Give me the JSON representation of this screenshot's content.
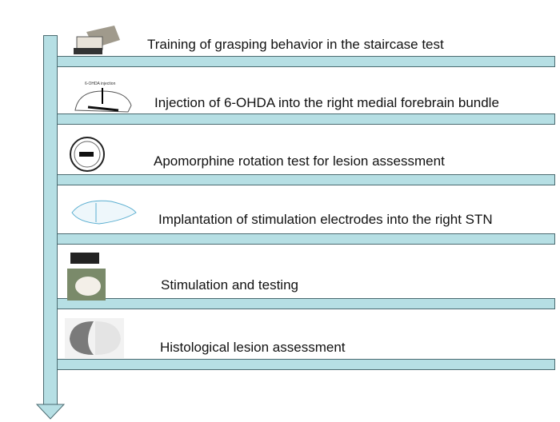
{
  "steps": [
    {
      "label": "Training of grasping behavior in the staircase test",
      "image": "staircase-apparatus-photo"
    },
    {
      "label": "Injection of 6-OHDA into the right medial forebrain bundle",
      "image": "brain-sagittal-diagram",
      "image_caption": "6-OHDA injection"
    },
    {
      "label": "Apomorphine rotation test for lesion assessment",
      "image": "rotation-bowl-diagram"
    },
    {
      "label": "Implantation of stimulation electrodes into the right STN",
      "image": "skull-electrode-diagram"
    },
    {
      "label": "Stimulation and testing",
      "image": "stimulator-and-rat-photo"
    },
    {
      "label": "Histological lesion assessment",
      "image": "brain-section-histology"
    }
  ],
  "colors": {
    "bar": "#b6dfe4",
    "outline": "#4a6a70"
  }
}
